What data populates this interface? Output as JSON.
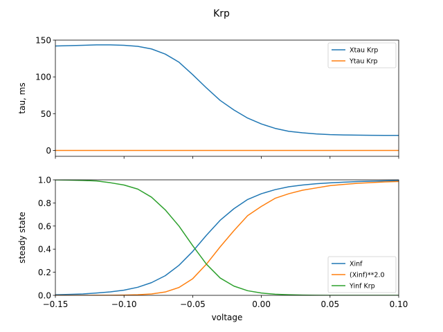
{
  "chart_data": {
    "title": "Krp",
    "type": "line",
    "panels": [
      {
        "ylabel": "tau, ms",
        "xlabel": "",
        "xlim": [
          -0.15,
          0.1
        ],
        "ylim": [
          -8,
          150
        ],
        "xticks": [
          -0.15,
          -0.1,
          -0.05,
          0.0,
          0.05,
          0.1
        ],
        "show_xtick_labels": false,
        "yticks": [
          0,
          50,
          100,
          150
        ],
        "ytick_labels": [
          "0",
          "50",
          "100",
          "150"
        ],
        "legend_position": "top-right",
        "series": [
          {
            "name": "Xtau Krp",
            "color": "#1f77b4",
            "x": [
              -0.15,
              -0.14,
              -0.13,
              -0.12,
              -0.11,
              -0.1,
              -0.09,
              -0.08,
              -0.07,
              -0.06,
              -0.05,
              -0.04,
              -0.03,
              -0.02,
              -0.01,
              0.0,
              0.01,
              0.02,
              0.03,
              0.04,
              0.05,
              0.06,
              0.07,
              0.08,
              0.09,
              0.1
            ],
            "y": [
              142,
              142.5,
              143,
              143.5,
              143.5,
              143,
              141.5,
              138,
              131,
              120,
              103,
              85,
              68,
              55,
              44,
              36,
              30,
              26,
              24,
              22.5,
              21.5,
              21,
              20.8,
              20.6,
              20.5,
              20.5
            ]
          },
          {
            "name": "Ytau Krp",
            "color": "#ff7f0e",
            "x": [
              -0.15,
              0.1
            ],
            "y": [
              0,
              0
            ]
          }
        ]
      },
      {
        "ylabel": "steady state",
        "xlabel": "voltage",
        "xlim": [
          -0.15,
          0.1
        ],
        "ylim": [
          0.0,
          1.0
        ],
        "xticks": [
          -0.15,
          -0.1,
          -0.05,
          0.0,
          0.05,
          0.1
        ],
        "xtick_labels": [
          "−0.15",
          "−0.10",
          "−0.05",
          "0.00",
          "0.05",
          "0.10"
        ],
        "show_xtick_labels": true,
        "yticks": [
          0.0,
          0.2,
          0.4,
          0.6,
          0.8,
          1.0
        ],
        "ytick_labels": [
          "0.0",
          "0.2",
          "0.4",
          "0.6",
          "0.8",
          "1.0"
        ],
        "legend_position": "lower-right",
        "series": [
          {
            "name": "Xinf",
            "color": "#1f77b4",
            "x": [
              -0.15,
              -0.14,
              -0.13,
              -0.12,
              -0.11,
              -0.1,
              -0.09,
              -0.08,
              -0.07,
              -0.06,
              -0.05,
              -0.04,
              -0.03,
              -0.02,
              -0.01,
              0.0,
              0.01,
              0.02,
              0.03,
              0.04,
              0.05,
              0.06,
              0.07,
              0.08,
              0.09,
              0.1
            ],
            "y": [
              0.005,
              0.008,
              0.012,
              0.02,
              0.03,
              0.045,
              0.07,
              0.11,
              0.17,
              0.26,
              0.38,
              0.52,
              0.65,
              0.75,
              0.83,
              0.88,
              0.915,
              0.94,
              0.955,
              0.966,
              0.974,
              0.98,
              0.985,
              0.988,
              0.991,
              0.993
            ]
          },
          {
            "name": "(Xinf)**2.0",
            "color": "#ff7f0e",
            "x": [
              -0.15,
              -0.14,
              -0.13,
              -0.12,
              -0.11,
              -0.1,
              -0.09,
              -0.08,
              -0.07,
              -0.06,
              -0.05,
              -0.04,
              -0.03,
              -0.02,
              -0.01,
              0.0,
              0.01,
              0.02,
              0.03,
              0.04,
              0.05,
              0.06,
              0.07,
              0.08,
              0.09,
              0.1
            ],
            "y": [
              0.0,
              0.0,
              0.0,
              0.0004,
              0.001,
              0.002,
              0.005,
              0.012,
              0.029,
              0.068,
              0.144,
              0.27,
              0.42,
              0.56,
              0.69,
              0.77,
              0.84,
              0.88,
              0.91,
              0.93,
              0.95,
              0.96,
              0.97,
              0.976,
              0.982,
              0.986
            ]
          },
          {
            "name": "Yinf Krp",
            "color": "#2ca02c",
            "x": [
              -0.15,
              -0.14,
              -0.13,
              -0.12,
              -0.11,
              -0.1,
              -0.09,
              -0.08,
              -0.07,
              -0.06,
              -0.05,
              -0.04,
              -0.03,
              -0.02,
              -0.01,
              0.0,
              0.01,
              0.02,
              0.03,
              0.04,
              0.05,
              0.06,
              0.07,
              0.08,
              0.09,
              0.1
            ],
            "y": [
              1.0,
              0.998,
              0.995,
              0.99,
              0.975,
              0.955,
              0.92,
              0.85,
              0.74,
              0.6,
              0.43,
              0.27,
              0.15,
              0.08,
              0.04,
              0.02,
              0.01,
              0.005,
              0.002,
              0.001,
              0.0,
              0.0,
              0.0,
              0.0,
              0.0,
              0.0
            ]
          }
        ]
      }
    ]
  }
}
